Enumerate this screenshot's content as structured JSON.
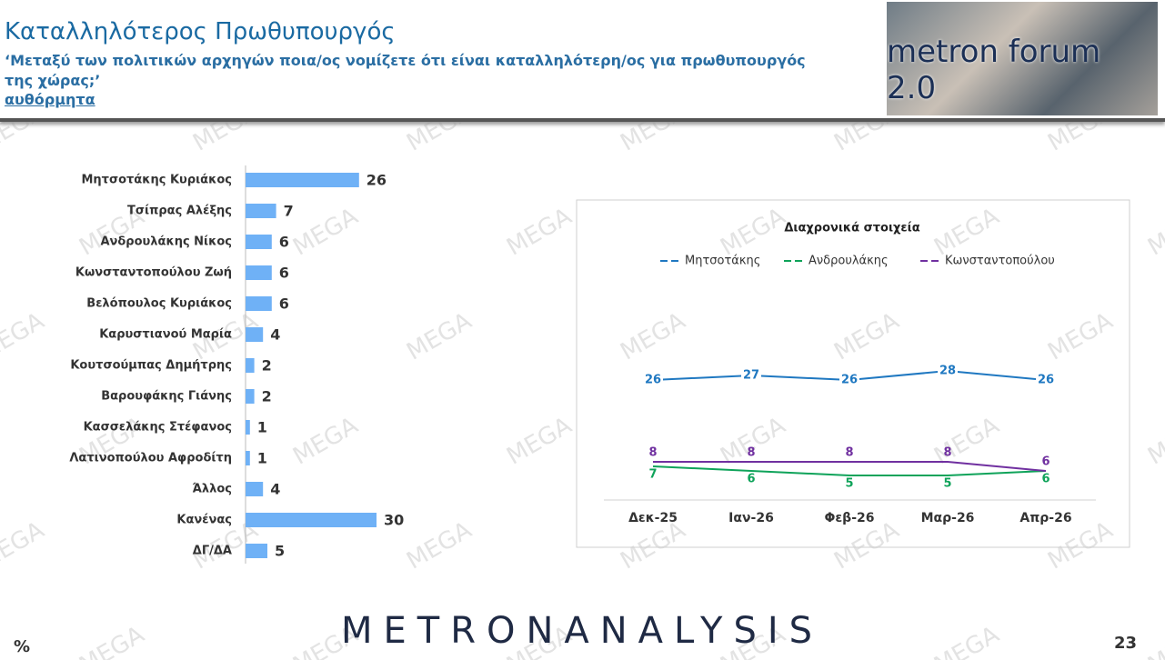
{
  "header": {
    "title": "Καταλληλότερος Πρωθυπουργός",
    "question": "‘Μεταξύ των πολιτικών αρχηγών ποια/ος νομίζετε ότι είναι καταλληλότερη/ος για πρωθυπουργός της χώρας;’",
    "note": "αυθόρμητα"
  },
  "logo": "metron forum 2.0",
  "watermark": "MEGA",
  "chart_data": [
    {
      "type": "bar",
      "orientation": "horizontal",
      "color": "#6fb1f6",
      "categories": [
        "Μητσοτάκης Κυριάκος",
        "Τσίπρας Αλέξης",
        "Ανδρουλάκης Νίκος",
        "Κωνσταντοπούλου Ζωή",
        "Βελόπουλος Κυριάκος",
        "Καρυστιανού Μαρία",
        "Κουτσούμπας Δημήτρης",
        "Βαρουφάκης Γιάνης",
        "Κασσελάκης Στέφανος",
        "Λατινοπούλου Αφροδίτη",
        "Άλλος",
        "Κανένας",
        "ΔΓ/ΔΑ"
      ],
      "values": [
        26,
        7,
        6,
        6,
        6,
        4,
        2,
        2,
        1,
        1,
        4,
        30,
        5
      ]
    },
    {
      "type": "line",
      "title": "Διαχρονικά στοιχεία",
      "categories": [
        "Δεκ-25",
        "Ιαν-26",
        "Φεβ-26",
        "Μαρ-26",
        "Απρ-26"
      ],
      "series": [
        {
          "name": "Μητσοτάκης",
          "color": "#1f78c1",
          "values": [
            26,
            27,
            26,
            28,
            26
          ]
        },
        {
          "name": "Ανδρουλάκης",
          "color": "#0fa35a",
          "values": [
            7,
            6,
            5,
            5,
            6
          ]
        },
        {
          "name": "Κωνσταντοπούλου",
          "color": "#7030a0",
          "values": [
            8,
            8,
            8,
            8,
            6
          ]
        }
      ]
    }
  ],
  "footer": {
    "unit": "%",
    "brand": "METRONANALYSIS",
    "page": "23"
  }
}
